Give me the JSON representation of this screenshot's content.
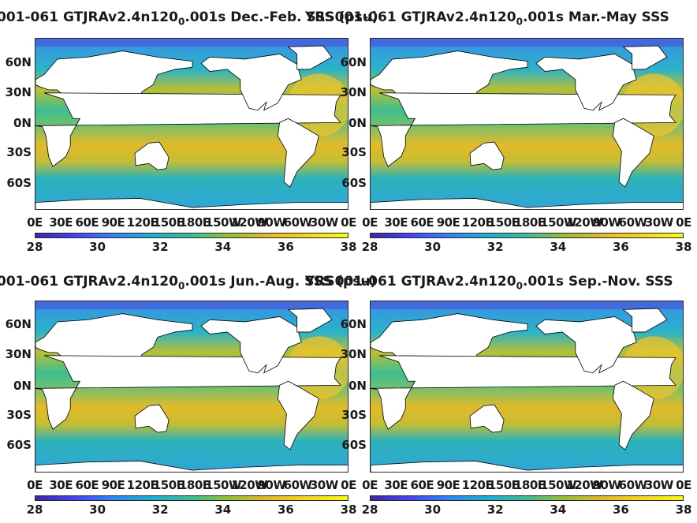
{
  "panels": [
    {
      "title_pre": "001-061 GTJRAv2.4n120",
      "title_sub": "0",
      "title_post": ".001s Dec.-Feb. SSS (psu)"
    },
    {
      "title_pre": "YRS001-061 GTJRAv2.4n120",
      "title_sub": "0",
      "title_post": ".001s Mar.-May SSS"
    },
    {
      "title_pre": "001-061 GTJRAv2.4n120",
      "title_sub": "0",
      "title_post": ".001s Jun.-Aug. SSS (psu)"
    },
    {
      "title_pre": "YRS001-061 GTJRAv2.4n120",
      "title_sub": "0",
      "title_post": ".001s Sep.-Nov. SSS"
    }
  ],
  "yticks": [
    "60N",
    "30N",
    "0N",
    "30S",
    "60S"
  ],
  "xticks": [
    "0E",
    "30E",
    "60E",
    "90E",
    "120E",
    "150E",
    "180E",
    "150W",
    "120W",
    "90W",
    "60W",
    "30W",
    "0E"
  ],
  "colorbar": {
    "ticks": [
      "28",
      "30",
      "32",
      "34",
      "36",
      "38"
    ],
    "min": 28,
    "max": 38,
    "colors": [
      "#3e26a8",
      "#4743f8",
      "#2e87f7",
      "#1bb1d4",
      "#3ebe91",
      "#9abf35",
      "#e7ba28",
      "#f6d81c",
      "#f9fb15"
    ]
  },
  "chart_data": [
    {
      "type": "heatmap",
      "title": "001-061 GTJRAv2.4n120_0.001s Dec.-Feb. SSS (psu)",
      "season": "Dec.-Feb.",
      "x_ticks": [
        "0E",
        "30E",
        "60E",
        "90E",
        "120E",
        "150E",
        "180E",
        "150W",
        "120W",
        "90W",
        "60W",
        "30W",
        "0E"
      ],
      "y_ticks": [
        "60N",
        "30N",
        "0N",
        "30S",
        "60S"
      ],
      "clim": [
        28,
        38
      ]
    },
    {
      "type": "heatmap",
      "title": "YRS001-061 GTJRAv2.4n120_0.001s Mar.-May SSS",
      "season": "Mar.-May",
      "x_ticks": [
        "0E",
        "30E",
        "60E",
        "90E",
        "120E",
        "150E",
        "180E",
        "150W",
        "120W",
        "90W",
        "60W",
        "30W",
        "0E"
      ],
      "y_ticks": [
        "60N",
        "30N",
        "0N",
        "30S",
        "60S"
      ],
      "clim": [
        28,
        38
      ]
    },
    {
      "type": "heatmap",
      "title": "001-061 GTJRAv2.4n120_0.001s Jun.-Aug. SSS (psu)",
      "season": "Jun.-Aug.",
      "x_ticks": [
        "0E",
        "30E",
        "60E",
        "90E",
        "120E",
        "150E",
        "180E",
        "150W",
        "120W",
        "90W",
        "60W",
        "30W",
        "0E"
      ],
      "y_ticks": [
        "60N",
        "30N",
        "0N",
        "30S",
        "60S"
      ],
      "clim": [
        28,
        38
      ]
    },
    {
      "type": "heatmap",
      "title": "YRS001-061 GTJRAv2.4n120_0.001s Sep.-Nov. SSS",
      "season": "Sep.-Nov.",
      "x_ticks": [
        "0E",
        "30E",
        "60E",
        "90E",
        "120E",
        "150E",
        "180E",
        "150W",
        "120W",
        "90W",
        "60W",
        "30W",
        "0E"
      ],
      "y_ticks": [
        "60N",
        "30N",
        "0N",
        "30S",
        "60S"
      ],
      "clim": [
        28,
        38
      ]
    }
  ]
}
